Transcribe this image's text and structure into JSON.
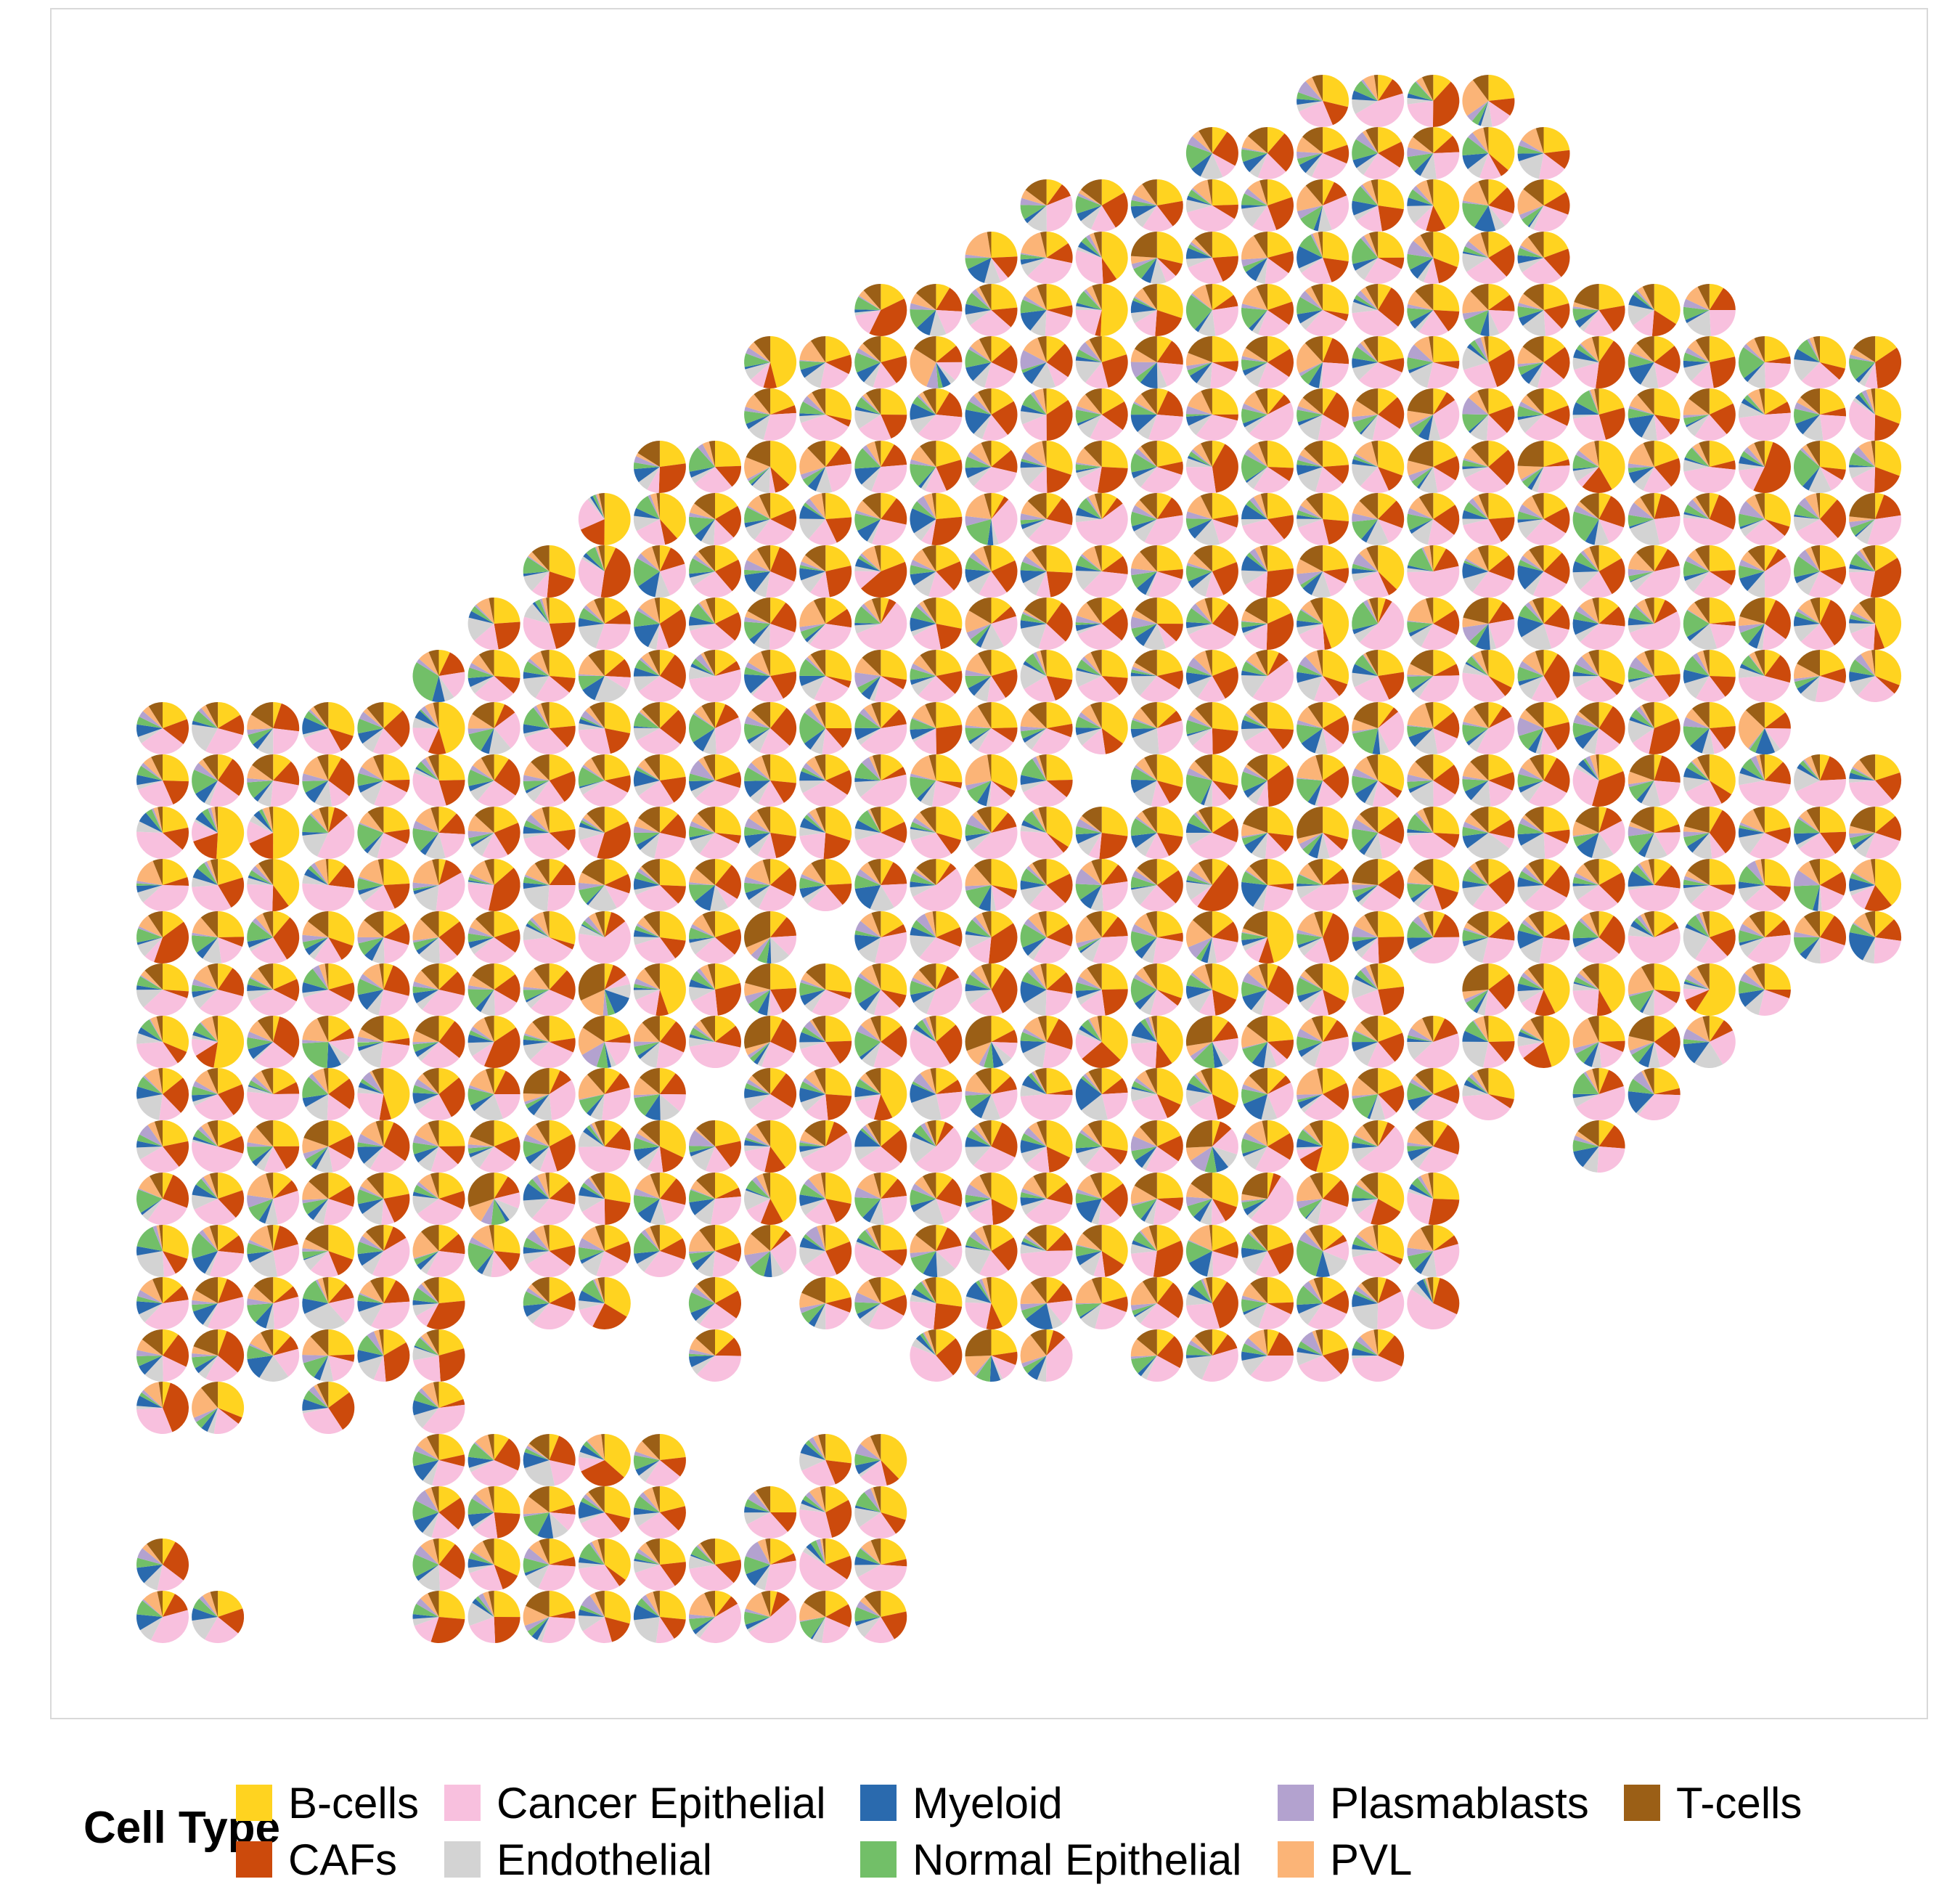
{
  "chart_data": {
    "type": "scatter",
    "mark": "pie-glyph",
    "title": "",
    "xlabel": "",
    "ylabel": "",
    "grid": false,
    "legend": {
      "position": "bottom",
      "title": "Cell Type",
      "entries": [
        {
          "name": "B-cells",
          "color": "#FFD320"
        },
        {
          "name": "CAFs",
          "color": "#CC4A0C"
        },
        {
          "name": "Cancer Epithelial",
          "color": "#F8C0DE"
        },
        {
          "name": "Endothelial",
          "color": "#D3D3D3"
        },
        {
          "name": "Myeloid",
          "color": "#2A6AAE"
        },
        {
          "name": "Normal Epithelial",
          "color": "#72BF68"
        },
        {
          "name": "Plasmablasts",
          "color": "#B3A2CF"
        },
        {
          "name": "PVL",
          "color": "#FBB477"
        },
        {
          "name": "T-cells",
          "color": "#9B5F16"
        }
      ]
    },
    "series": [
      {
        "name": "B-cells",
        "mean_fraction": 0.2
      },
      {
        "name": "CAFs",
        "mean_fraction": 0.16
      },
      {
        "name": "Cancer Epithelial",
        "mean_fraction": 0.25
      },
      {
        "name": "Endothelial",
        "mean_fraction": 0.08
      },
      {
        "name": "Myeloid",
        "mean_fraction": 0.05
      },
      {
        "name": "Normal Epithelial",
        "mean_fraction": 0.07
      },
      {
        "name": "Plasmablasts",
        "mean_fraction": 0.03
      },
      {
        "name": "PVL",
        "mean_fraction": 0.07
      },
      {
        "name": "T-cells",
        "mean_fraction": 0.09
      }
    ],
    "spots": {
      "row_count": 30,
      "col_count": 34,
      "rows": [
        {
          "row": 1,
          "cols": [
            [
              21,
              24
            ]
          ]
        },
        {
          "row": 2,
          "cols": [
            [
              19,
              25
            ]
          ]
        },
        {
          "row": 3,
          "cols": [
            [
              16,
              25
            ]
          ]
        },
        {
          "row": 4,
          "cols": [
            [
              15,
              25
            ]
          ]
        },
        {
          "row": 5,
          "cols": [
            [
              13,
              28
            ]
          ]
        },
        {
          "row": 6,
          "cols": [
            [
              11,
              31
            ]
          ]
        },
        {
          "row": 7,
          "cols": [
            [
              11,
              31
            ]
          ]
        },
        {
          "row": 8,
          "cols": [
            [
              9,
              31
            ]
          ]
        },
        {
          "row": 9,
          "cols": [
            [
              8,
              31
            ]
          ]
        },
        {
          "row": 10,
          "cols": [
            [
              7,
              31
            ]
          ]
        },
        {
          "row": 11,
          "cols": [
            [
              6,
              31
            ]
          ]
        },
        {
          "row": 12,
          "cols": [
            [
              5,
              31
            ]
          ]
        },
        {
          "row": 13,
          "cols": [
            [
              0,
              29
            ]
          ]
        },
        {
          "row": 14,
          "cols": [
            [
              0,
              16
            ],
            [
              18,
              31
            ]
          ]
        },
        {
          "row": 15,
          "cols": [
            [
              0,
              31
            ]
          ]
        },
        {
          "row": 16,
          "cols": [
            [
              0,
              31
            ]
          ]
        },
        {
          "row": 17,
          "cols": [
            [
              0,
              11
            ],
            [
              13,
              31
            ]
          ]
        },
        {
          "row": 18,
          "cols": [
            [
              0,
              22
            ],
            [
              24,
              29
            ]
          ]
        },
        {
          "row": 19,
          "cols": [
            [
              0,
              28
            ]
          ]
        },
        {
          "row": 20,
          "cols": [
            [
              0,
              9
            ],
            [
              11,
              24
            ],
            [
              26,
              27
            ]
          ]
        },
        {
          "row": 21,
          "cols": [
            [
              0,
              23
            ],
            [
              26
            ]
          ]
        },
        {
          "row": 22,
          "cols": [
            [
              0,
              23
            ]
          ]
        },
        {
          "row": 23,
          "cols": [
            [
              0,
              23
            ]
          ]
        },
        {
          "row": 24,
          "cols": [
            [
              0,
              5
            ],
            [
              7,
              8
            ],
            [
              10
            ],
            [
              12,
              23
            ]
          ]
        },
        {
          "row": 25,
          "cols": [
            [
              0,
              5
            ],
            [
              10
            ],
            [
              14,
              16
            ],
            [
              18,
              22
            ]
          ]
        },
        {
          "row": 26,
          "cols": [
            [
              0,
              1
            ],
            [
              3
            ],
            [
              5
            ]
          ]
        },
        {
          "row": 27,
          "cols": [
            [
              5,
              9
            ],
            [
              12,
              13
            ]
          ]
        },
        {
          "row": 28,
          "cols": [
            [
              5,
              9
            ],
            [
              11,
              13
            ]
          ]
        },
        {
          "row": 29,
          "cols": [
            [
              0
            ],
            [
              5,
              13
            ]
          ]
        },
        {
          "row": 30,
          "cols": [
            [
              0,
              1
            ],
            [
              5,
              13
            ]
          ]
        }
      ]
    }
  }
}
